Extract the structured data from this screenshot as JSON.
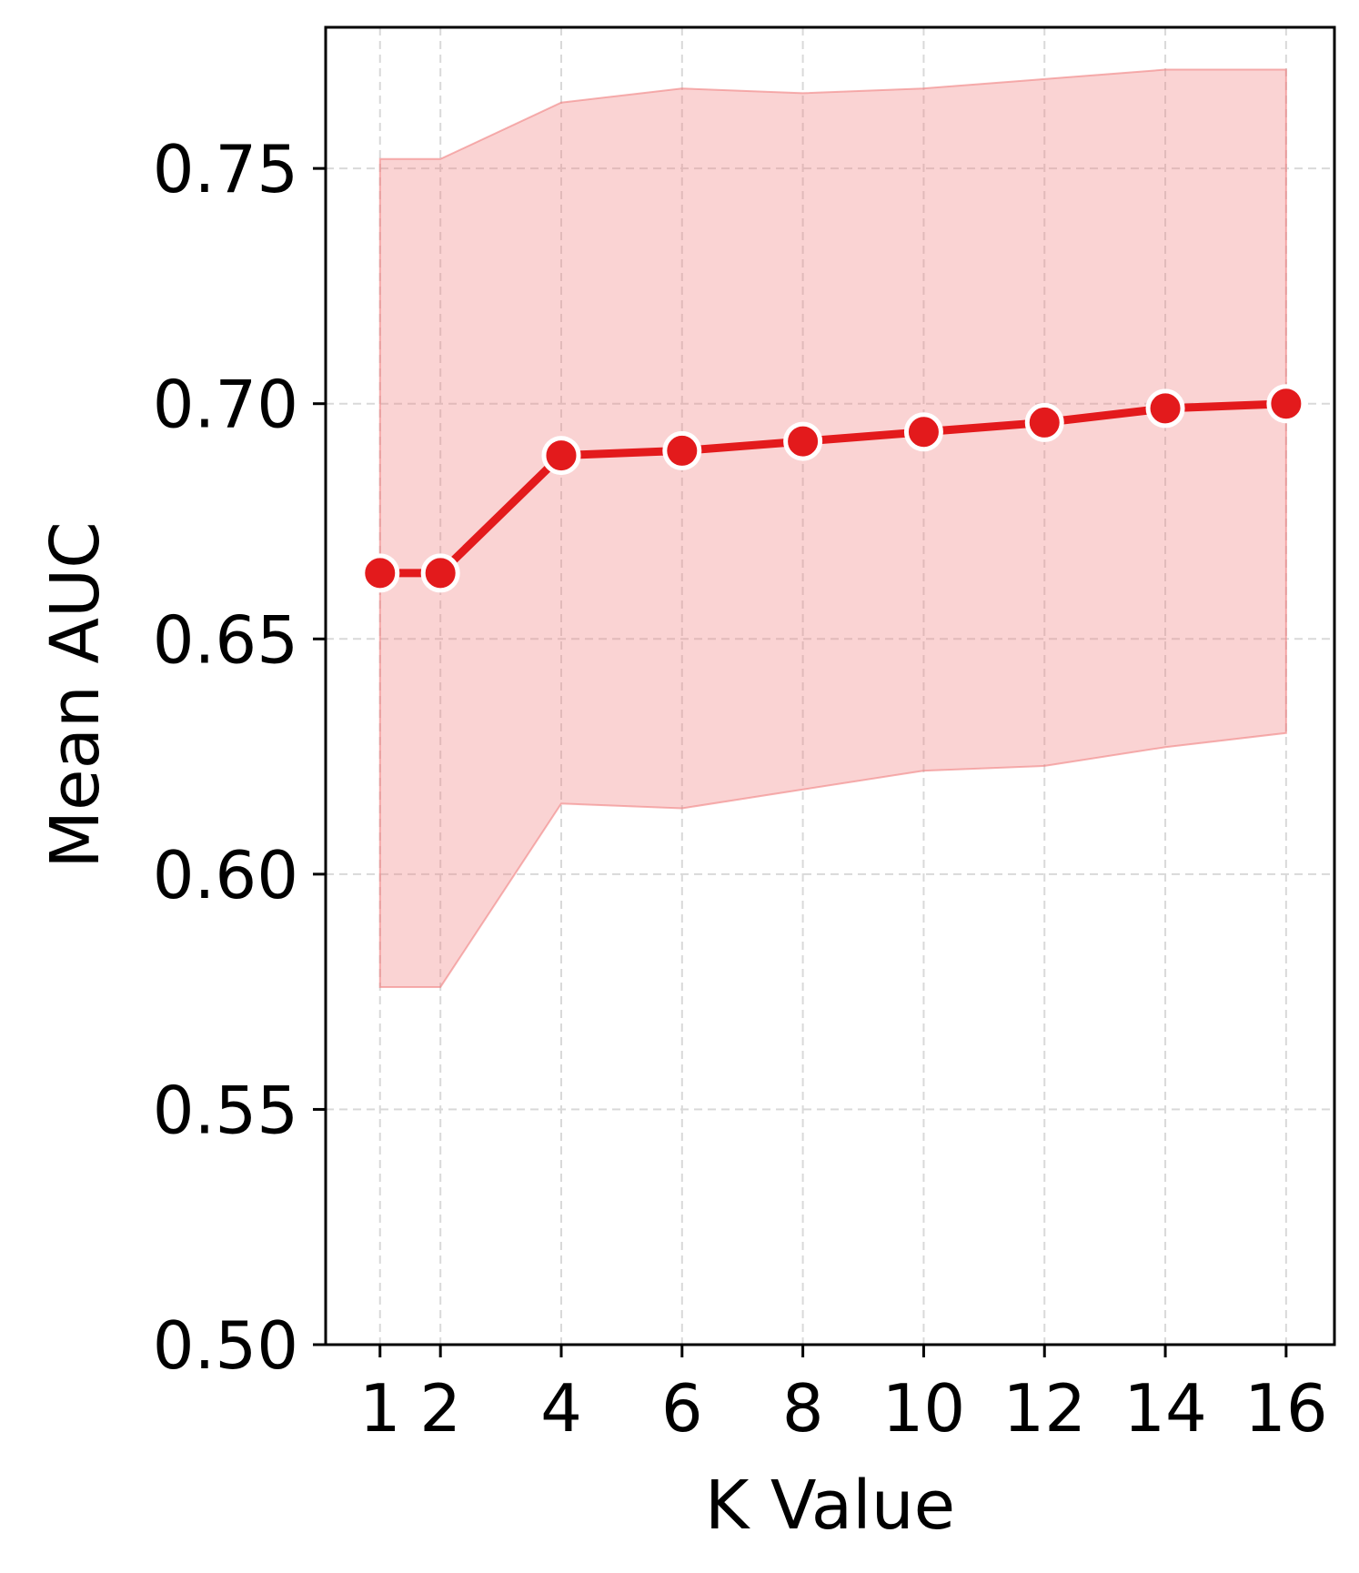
{
  "chart_data": {
    "type": "line",
    "title": "",
    "xlabel": "K Value",
    "ylabel": "Mean AUC",
    "x": [
      1,
      2,
      4,
      6,
      8,
      10,
      12,
      14,
      16
    ],
    "x_tick_labels": [
      "1",
      "2",
      "4",
      "6",
      "8",
      "10",
      "12",
      "14",
      "16"
    ],
    "y_ticks": [
      0.5,
      0.55,
      0.6,
      0.65,
      0.7,
      0.75
    ],
    "y_tick_labels": [
      "0.50",
      "0.55",
      "0.60",
      "0.65",
      "0.70",
      "0.75"
    ],
    "xlim": [
      0.1,
      16.8
    ],
    "ylim": [
      0.5,
      0.78
    ],
    "grid": true,
    "series": [
      {
        "values": [
          0.664,
          0.664,
          0.689,
          0.69,
          0.692,
          0.694,
          0.696,
          0.699,
          0.7
        ],
        "band_upper": [
          0.752,
          0.752,
          0.764,
          0.767,
          0.766,
          0.767,
          0.769,
          0.771,
          0.771
        ],
        "band_lower": [
          0.576,
          0.576,
          0.615,
          0.614,
          0.618,
          0.622,
          0.623,
          0.627,
          0.63
        ],
        "color": "#e31a1c",
        "band_color": "#f08080"
      }
    ]
  }
}
